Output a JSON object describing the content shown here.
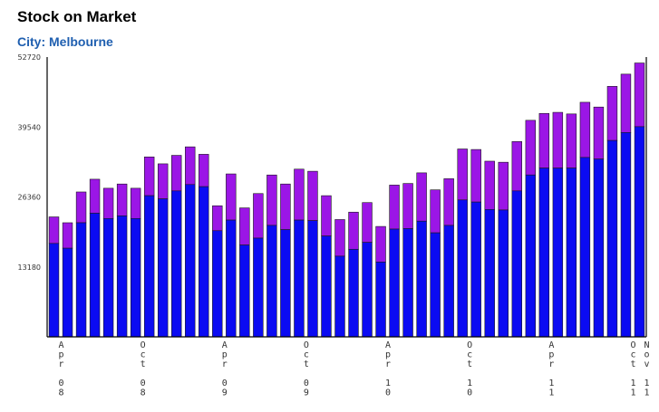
{
  "title": "Stock on Market",
  "subtitle": "City: Melbourne",
  "colors": {
    "lower": "#0b0bf2",
    "upper": "#9b16e6",
    "axis": "#000000",
    "title": "#000000",
    "subtitle": "#1f5fb0"
  },
  "chart_data": {
    "type": "bar",
    "stacked": true,
    "ylim": [
      0,
      52720
    ],
    "yticks": [
      13180,
      26360,
      39540,
      52720
    ],
    "grid": false,
    "x_tick_labels": [
      {
        "index": 0,
        "text": "Apr 08"
      },
      {
        "index": 6,
        "text": "Oct 08"
      },
      {
        "index": 12,
        "text": "Apr 09"
      },
      {
        "index": 18,
        "text": "Oct 09"
      },
      {
        "index": 24,
        "text": "Apr 10"
      },
      {
        "index": 30,
        "text": "Oct 10"
      },
      {
        "index": 36,
        "text": "Apr 11"
      },
      {
        "index": 42,
        "text": "Oct 11"
      },
      {
        "index": 43,
        "text": "Nov 11"
      }
    ],
    "series": [
      {
        "values": [
          17600,
          16700,
          21500,
          23300,
          22300,
          22800,
          22300,
          26600,
          26000,
          27500,
          28700,
          28300,
          20000,
          22000,
          17300,
          18600,
          21000,
          20200,
          22000,
          21900,
          19000,
          15200,
          16500,
          17800,
          14100,
          20300,
          20400,
          21800,
          19600,
          21000,
          25800,
          25400,
          24000,
          23900,
          27500,
          30500,
          31800,
          31800,
          31800,
          33800,
          33500,
          37000,
          38500,
          39600
        ]
      },
      {
        "values": [
          5000,
          4800,
          5800,
          6400,
          5700,
          6000,
          5700,
          7300,
          6600,
          6700,
          7100,
          6100,
          4700,
          8700,
          7000,
          8400,
          9500,
          8600,
          9600,
          9300,
          7600,
          6900,
          7000,
          7500,
          6700,
          8300,
          8500,
          9100,
          8100,
          8800,
          9600,
          9900,
          9100,
          9000,
          9300,
          10300,
          10300,
          10500,
          10200,
          10400,
          9800,
          10200,
          11000,
          12000
        ]
      }
    ]
  }
}
